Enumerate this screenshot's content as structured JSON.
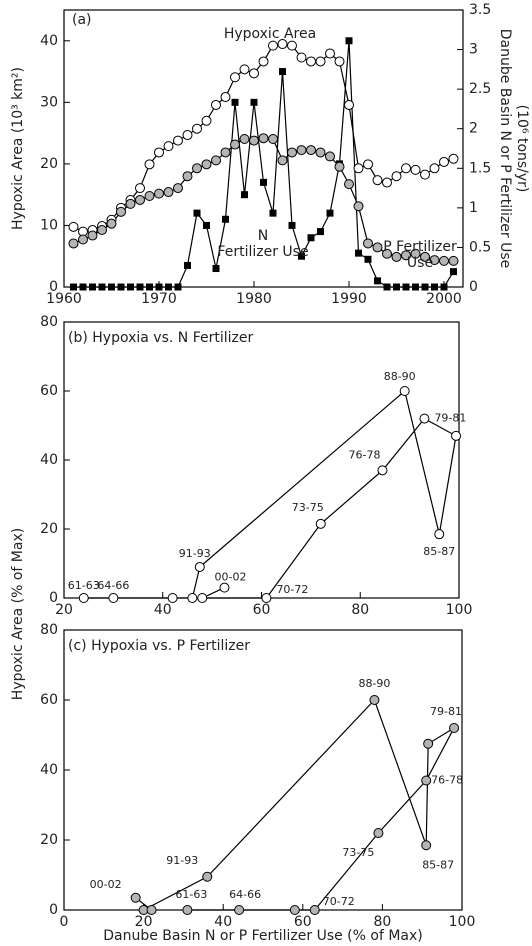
{
  "chart_data": [
    {
      "type": "line",
      "label": "(a)",
      "ylabel": "Hypoxic Area (10³ km²)",
      "y2label": [
        "Danube Basin N or P Fertilizer Use",
        "(10⁶ tons/yr)"
      ],
      "x": [
        1961,
        1962,
        1963,
        1964,
        1965,
        1966,
        1967,
        1968,
        1969,
        1970,
        1971,
        1972,
        1973,
        1974,
        1975,
        1976,
        1977,
        1978,
        1979,
        1980,
        1981,
        1982,
        1983,
        1984,
        1985,
        1986,
        1987,
        1988,
        1989,
        1990,
        1991,
        1992,
        1993,
        1994,
        1995,
        1996,
        1997,
        1998,
        1999,
        2000,
        2001
      ],
      "series": [
        {
          "name": "Hypoxic Area",
          "color": "#000000",
          "marker": "square",
          "values": [
            0,
            0,
            0,
            0,
            0,
            0,
            0,
            0,
            0,
            0,
            0,
            0,
            3.5,
            12,
            10,
            3,
            11,
            30,
            15,
            30,
            17,
            12,
            35,
            10,
            5,
            8,
            9,
            12,
            20,
            40,
            5.5,
            4.5,
            1,
            0,
            0,
            0,
            0,
            0,
            0,
            0,
            2.5
          ]
        },
        {
          "name": "N Fertilizer Use",
          "color": "#ffffff",
          "marker": "circle",
          "axis": "y2",
          "values": [
            0.76,
            0.7,
            0.72,
            0.77,
            0.85,
            1.0,
            1.1,
            1.25,
            1.55,
            1.7,
            1.78,
            1.85,
            1.92,
            2.0,
            2.1,
            2.3,
            2.4,
            2.65,
            2.75,
            2.7,
            2.85,
            3.05,
            3.07,
            3.05,
            2.9,
            2.85,
            2.85,
            2.95,
            2.85,
            2.3,
            1.5,
            1.55,
            1.35,
            1.32,
            1.4,
            1.5,
            1.48,
            1.42,
            1.5,
            1.58,
            1.62
          ]
        },
        {
          "name": "P Fertilizer Use",
          "color": "#b4b4b4",
          "marker": "circle",
          "axis": "y2",
          "values": [
            0.55,
            0.6,
            0.65,
            0.72,
            0.8,
            0.95,
            1.05,
            1.1,
            1.15,
            1.18,
            1.2,
            1.25,
            1.4,
            1.5,
            1.55,
            1.6,
            1.7,
            1.8,
            1.87,
            1.85,
            1.88,
            1.87,
            1.6,
            1.7,
            1.73,
            1.73,
            1.7,
            1.65,
            1.52,
            1.3,
            1.02,
            0.55,
            0.5,
            0.42,
            0.38,
            0.4,
            0.42,
            0.38,
            0.34,
            0.33,
            0.33
          ]
        }
      ],
      "xlim": [
        1960,
        2002
      ],
      "xticks": [
        1960,
        1970,
        1980,
        1990,
        2000
      ],
      "ylim": [
        0,
        45
      ],
      "yticks": [
        0,
        10,
        20,
        30,
        40
      ],
      "y2lim": [
        0,
        3.5
      ],
      "y2ticks": [
        0,
        0.5,
        1,
        1.5,
        2,
        2.5,
        3,
        3.5
      ]
    },
    {
      "type": "scatter",
      "title": "(b) Hypoxia vs. N Fertilizer",
      "color": "#ffffff",
      "ylabel": "Hypoxic Area (% of Max)",
      "categories": [
        "61-63",
        "64-66",
        null,
        "70-72",
        "73-75",
        "76-78",
        "79-81",
        null,
        "85-87",
        "88-90",
        "91-93",
        null,
        null,
        "00-02"
      ],
      "x": [
        24,
        30,
        42,
        61,
        72,
        84.5,
        93,
        99.4,
        96,
        89,
        47.5,
        46,
        48,
        52.5
      ],
      "values": [
        0,
        0,
        0,
        0,
        21.5,
        37,
        52,
        47,
        18.5,
        60,
        9,
        0,
        0,
        3
      ],
      "xlim": [
        20,
        100
      ],
      "xticks": [
        20,
        40,
        60,
        80,
        100
      ],
      "ylim": [
        0,
        80
      ],
      "yticks": [
        0,
        20,
        40,
        60,
        80
      ]
    },
    {
      "type": "scatter",
      "title": "(c) Hypoxia vs. P Fertilizer",
      "color": "#b4b4b4",
      "xlabel": "Danube Basin N or P Fertilizer Use (% of Max)",
      "categories": [
        "61-63",
        "64-66",
        null,
        "70-72",
        "73-75",
        "76-78",
        "79-81",
        null,
        "85-87",
        "88-90",
        "91-93",
        null,
        null,
        "00-02"
      ],
      "x": [
        31,
        44,
        58,
        63,
        79,
        91,
        98,
        91.5,
        91,
        78,
        36,
        20,
        22,
        18
      ],
      "values": [
        0,
        0,
        0,
        0,
        22,
        37,
        52,
        47.5,
        18.5,
        60,
        9.5,
        0,
        0,
        3.5
      ],
      "xlim": [
        0,
        100
      ],
      "xticks": [
        0,
        20,
        40,
        60,
        80,
        100
      ],
      "ylim": [
        0,
        80
      ],
      "yticks": [
        0,
        20,
        40,
        60,
        80
      ]
    }
  ]
}
